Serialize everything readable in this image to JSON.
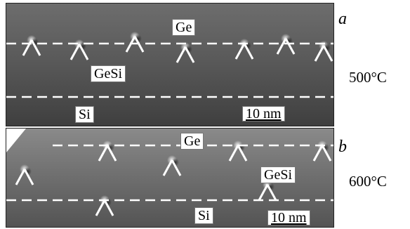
{
  "figure": {
    "panels": [
      {
        "id": "a",
        "letter": "a",
        "temperature": "500°C",
        "labels": {
          "top_layer": "Ge",
          "middle_layer": "GeSi",
          "bottom_layer": "Si",
          "scale_bar": "10 nm"
        }
      },
      {
        "id": "b",
        "letter": "b",
        "temperature": "600°C",
        "labels": {
          "top_layer": "Ge",
          "middle_layer": "GeSi",
          "bottom_layer": "Si",
          "scale_bar": "10 nm"
        }
      }
    ],
    "colors": {
      "micrograph_bg": "#5c5c5c",
      "guide_lines": "#ffffff",
      "label_bg": "#ffffff"
    }
  }
}
